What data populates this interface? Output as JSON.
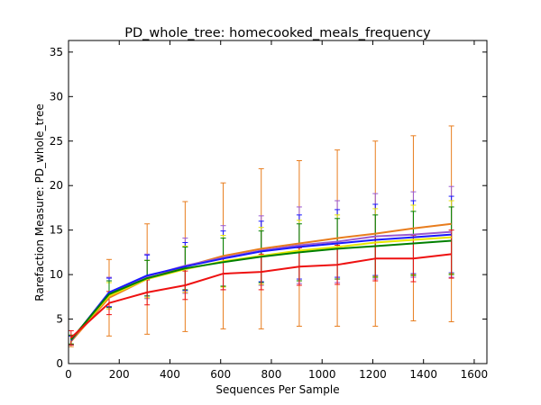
{
  "chart_data": {
    "type": "line",
    "title": "PD_whole_tree: homecooked_meals_frequency",
    "xlabel": "Sequences Per Sample",
    "ylabel": "Rarefaction Measure: PD_whole_tree",
    "xlim": [
      0,
      1650
    ],
    "ylim": [
      0,
      36.3
    ],
    "xticks": [
      "0",
      "200",
      "400",
      "600",
      "800",
      "1000",
      "1200",
      "1400",
      "1600"
    ],
    "yticks": [
      "0",
      "5",
      "10",
      "15",
      "20",
      "25",
      "30",
      "35"
    ],
    "grid": false,
    "legend": "none",
    "x": [
      10,
      160,
      310,
      460,
      610,
      760,
      910,
      1060,
      1210,
      1360,
      1510
    ],
    "series": [
      {
        "color": "#e87d1e",
        "values": [
          2.5,
          7.4,
          9.5,
          10.9,
          12.1,
          12.9,
          13.5,
          14.1,
          14.6,
          15.2,
          15.7
        ],
        "errors": [
          0.6,
          4.3,
          6.2,
          7.3,
          8.2,
          9.0,
          9.3,
          9.9,
          10.4,
          10.4,
          11.0
        ]
      },
      {
        "color": "#9b59d0",
        "values": [
          2.6,
          8.0,
          9.8,
          11.0,
          11.9,
          12.7,
          13.3,
          13.7,
          14.3,
          14.5,
          14.8
        ],
        "errors": [
          0.5,
          1.7,
          2.5,
          3.1,
          3.6,
          3.9,
          4.3,
          4.6,
          4.8,
          4.8,
          5.1
        ]
      },
      {
        "color": "#1a1aff",
        "values": [
          2.6,
          8.0,
          9.9,
          10.9,
          11.8,
          12.6,
          13.1,
          13.5,
          13.9,
          14.2,
          14.5
        ],
        "errors": [
          0.5,
          1.6,
          2.3,
          2.7,
          3.1,
          3.4,
          3.6,
          3.8,
          4.0,
          4.1,
          4.3
        ]
      },
      {
        "color": "#e6e600",
        "values": [
          2.7,
          7.6,
          9.5,
          10.6,
          11.5,
          12.1,
          12.7,
          13.1,
          13.6,
          13.9,
          14.2
        ],
        "errors": [
          0.5,
          1.5,
          2.1,
          2.6,
          2.9,
          3.2,
          3.4,
          3.6,
          3.8,
          3.9,
          4.1
        ]
      },
      {
        "color": "#008000",
        "values": [
          2.7,
          7.8,
          9.6,
          10.7,
          11.4,
          12.0,
          12.5,
          12.9,
          13.2,
          13.5,
          13.8
        ],
        "errors": [
          0.5,
          1.5,
          2.0,
          2.4,
          2.7,
          2.9,
          3.2,
          3.4,
          3.5,
          3.6,
          3.8
        ]
      },
      {
        "color": "#ee1111",
        "values": [
          2.9,
          6.8,
          8.0,
          8.8,
          10.1,
          10.3,
          10.9,
          11.1,
          11.8,
          11.8,
          12.3
        ],
        "errors": [
          0.8,
          1.3,
          1.4,
          1.6,
          1.8,
          2.0,
          2.1,
          2.2,
          2.5,
          2.6,
          2.7
        ]
      }
    ]
  }
}
